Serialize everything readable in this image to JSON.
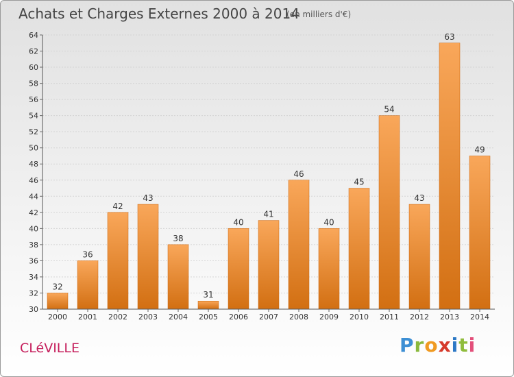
{
  "header": {
    "title": "Achats et Charges Externes 2000 à 2014",
    "unit": "(en milliers d'€)"
  },
  "footer": {
    "place": "CLéVILLE",
    "logo": "Proxiti"
  },
  "colors": {
    "bar_light": "#f9a75a",
    "bar_dark": "#d26f12",
    "place_text": "#c51d5b"
  },
  "chart_data": {
    "type": "bar",
    "title": "Achats et Charges Externes 2000 à 2014",
    "subtitle": "(en milliers d'€)",
    "xlabel": "",
    "ylabel": "",
    "categories": [
      "2000",
      "2001",
      "2002",
      "2003",
      "2004",
      "2005",
      "2006",
      "2007",
      "2008",
      "2009",
      "2010",
      "2011",
      "2012",
      "2013",
      "2014"
    ],
    "values": [
      32,
      36,
      42,
      43,
      38,
      31,
      40,
      41,
      46,
      40,
      45,
      54,
      43,
      63,
      49
    ],
    "ylim": [
      30,
      64
    ],
    "yticks": [
      30,
      32,
      34,
      36,
      38,
      40,
      42,
      44,
      46,
      48,
      50,
      52,
      54,
      56,
      58,
      60,
      62,
      64
    ],
    "grid": true,
    "data_labels": true
  }
}
